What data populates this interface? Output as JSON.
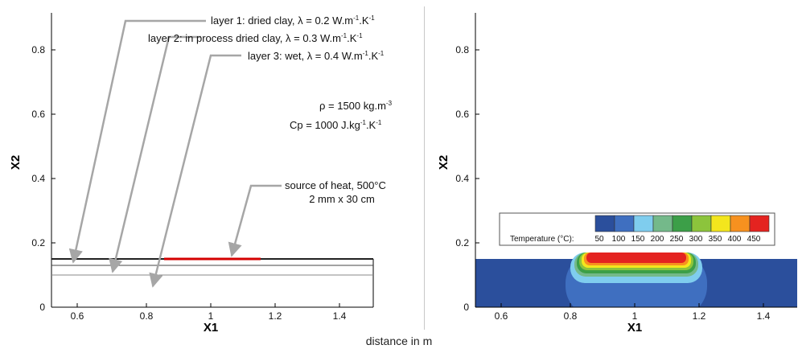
{
  "caption": "distance in m",
  "colors": {
    "frame": "#000000",
    "source_red": "#d40000",
    "arrow_gray": "#a6a6a6",
    "domain_blue": "#2b4f9c"
  },
  "left_panel": {
    "x_axis_label": "X1",
    "y_axis_label": "X2",
    "x_ticks": [
      "0.6",
      "0.8",
      "1",
      "1.2",
      "1.4"
    ],
    "y_ticks": [
      "0",
      "0.2",
      "0.4",
      "0.6",
      "0.8"
    ],
    "layer_labels": {
      "layer1": [
        "layer 1: dried clay, λ = 0.2 W.m",
        "-1",
        ".K",
        "-1"
      ],
      "layer2": [
        "layer 2:  in process dried clay, λ = 0.3 W.m",
        "-1",
        ".K",
        "-1"
      ],
      "layer3": [
        "layer 3: wet, λ = 0.4 W.m",
        "-1",
        ".K",
        "-1"
      ]
    },
    "properties": {
      "density": [
        "ρ = 1500 kg.m",
        "-3"
      ],
      "heat_capacity": [
        "Cp = 1000 J.kg",
        "-1",
        ".K",
        "-1"
      ]
    },
    "source_label": {
      "line1": "source of heat, 500°C",
      "line2": "2 mm x 30 cm"
    }
  },
  "right_panel": {
    "x_axis_label": "X1",
    "y_axis_label": "X2",
    "x_ticks": [
      "0.6",
      "0.8",
      "1",
      "1.2",
      "1.4"
    ],
    "y_ticks": [
      "0",
      "0.2",
      "0.4",
      "0.6",
      "0.8"
    ],
    "legend": {
      "title": "Temperature (°C):",
      "levels": [
        "50",
        "100",
        "150",
        "200",
        "250",
        "300",
        "350",
        "400",
        "450"
      ],
      "colors": [
        "#2b4f9c",
        "#3f6fc0",
        "#7fcdee",
        "#74b98a",
        "#3c9f48",
        "#8cc43c",
        "#f3e61d",
        "#f7911f",
        "#e42320"
      ]
    }
  }
}
